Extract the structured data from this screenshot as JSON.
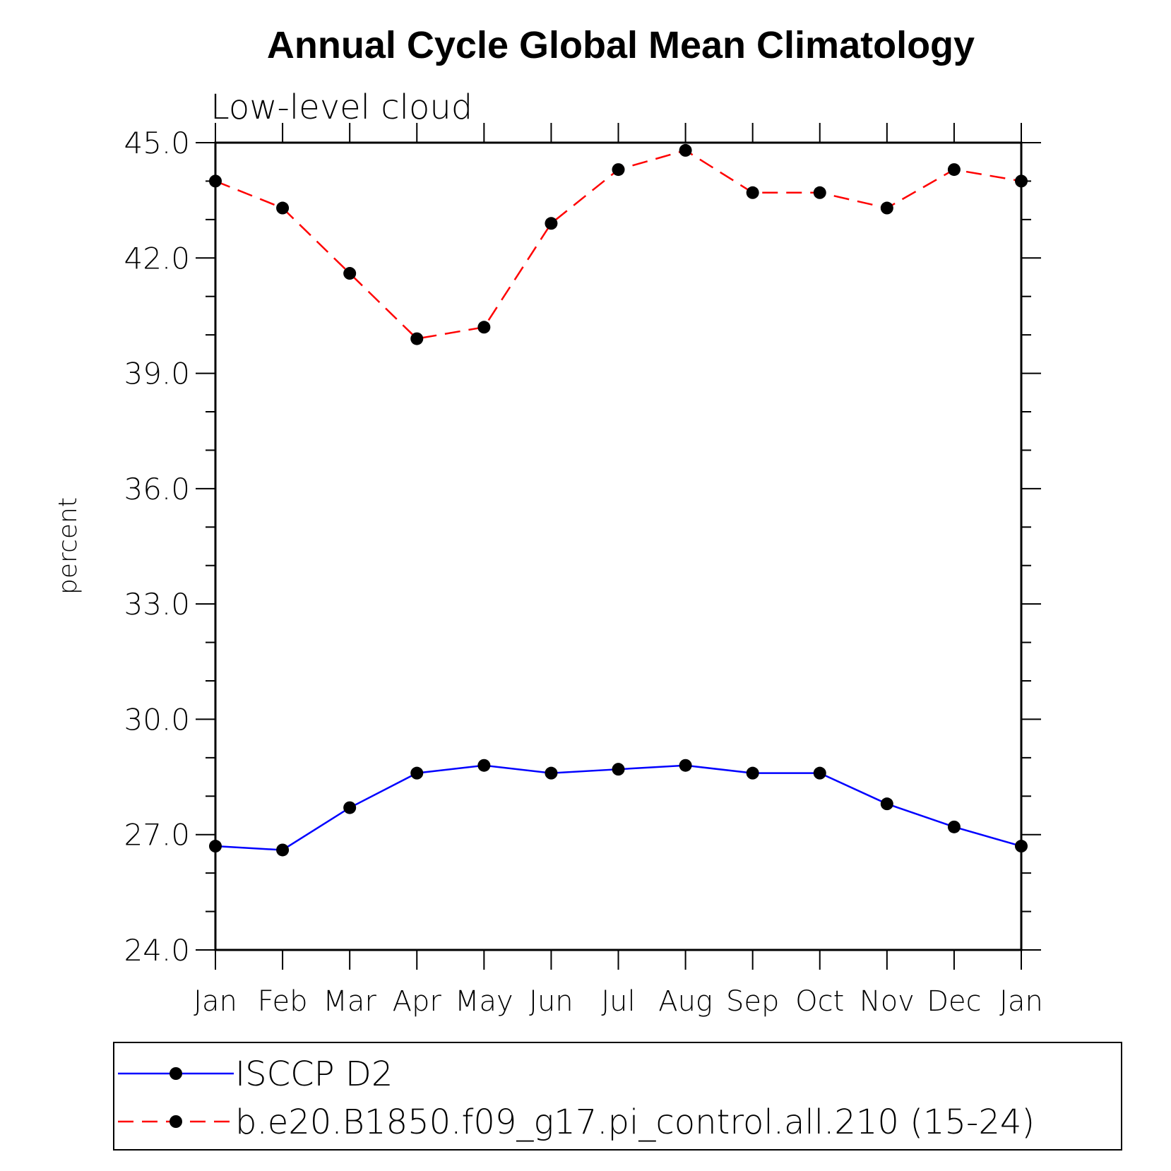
{
  "chart_data": {
    "type": "line",
    "title": "Annual Cycle Global Mean Climatology",
    "subtitle": "Low-level cloud",
    "xlabel": "",
    "ylabel": "percent",
    "ylim": [
      24.0,
      45.0
    ],
    "yticks": [
      "24.0",
      "27.0",
      "30.0",
      "33.0",
      "36.0",
      "39.0",
      "42.0",
      "45.0"
    ],
    "categories": [
      "Jan",
      "Feb",
      "Mar",
      "Apr",
      "May",
      "Jun",
      "Jul",
      "Aug",
      "Sep",
      "Oct",
      "Nov",
      "Dec",
      "Jan"
    ],
    "series": [
      {
        "name": "ISCCP D2",
        "color": "#0000ff",
        "dash": "solid",
        "values": [
          26.7,
          26.6,
          27.7,
          28.6,
          28.8,
          28.6,
          28.7,
          28.8,
          28.6,
          28.6,
          27.8,
          27.2,
          26.7
        ]
      },
      {
        "name": "b.e20.B1850.f09_g17.pi_control.all.210 (15-24)",
        "color": "#ff0000",
        "dash": "dashed",
        "values": [
          44.0,
          43.3,
          41.6,
          39.9,
          40.2,
          42.9,
          44.3,
          44.8,
          43.7,
          43.7,
          43.3,
          44.3,
          44.0
        ]
      }
    ],
    "grid": false,
    "legend_position": "bottom"
  }
}
